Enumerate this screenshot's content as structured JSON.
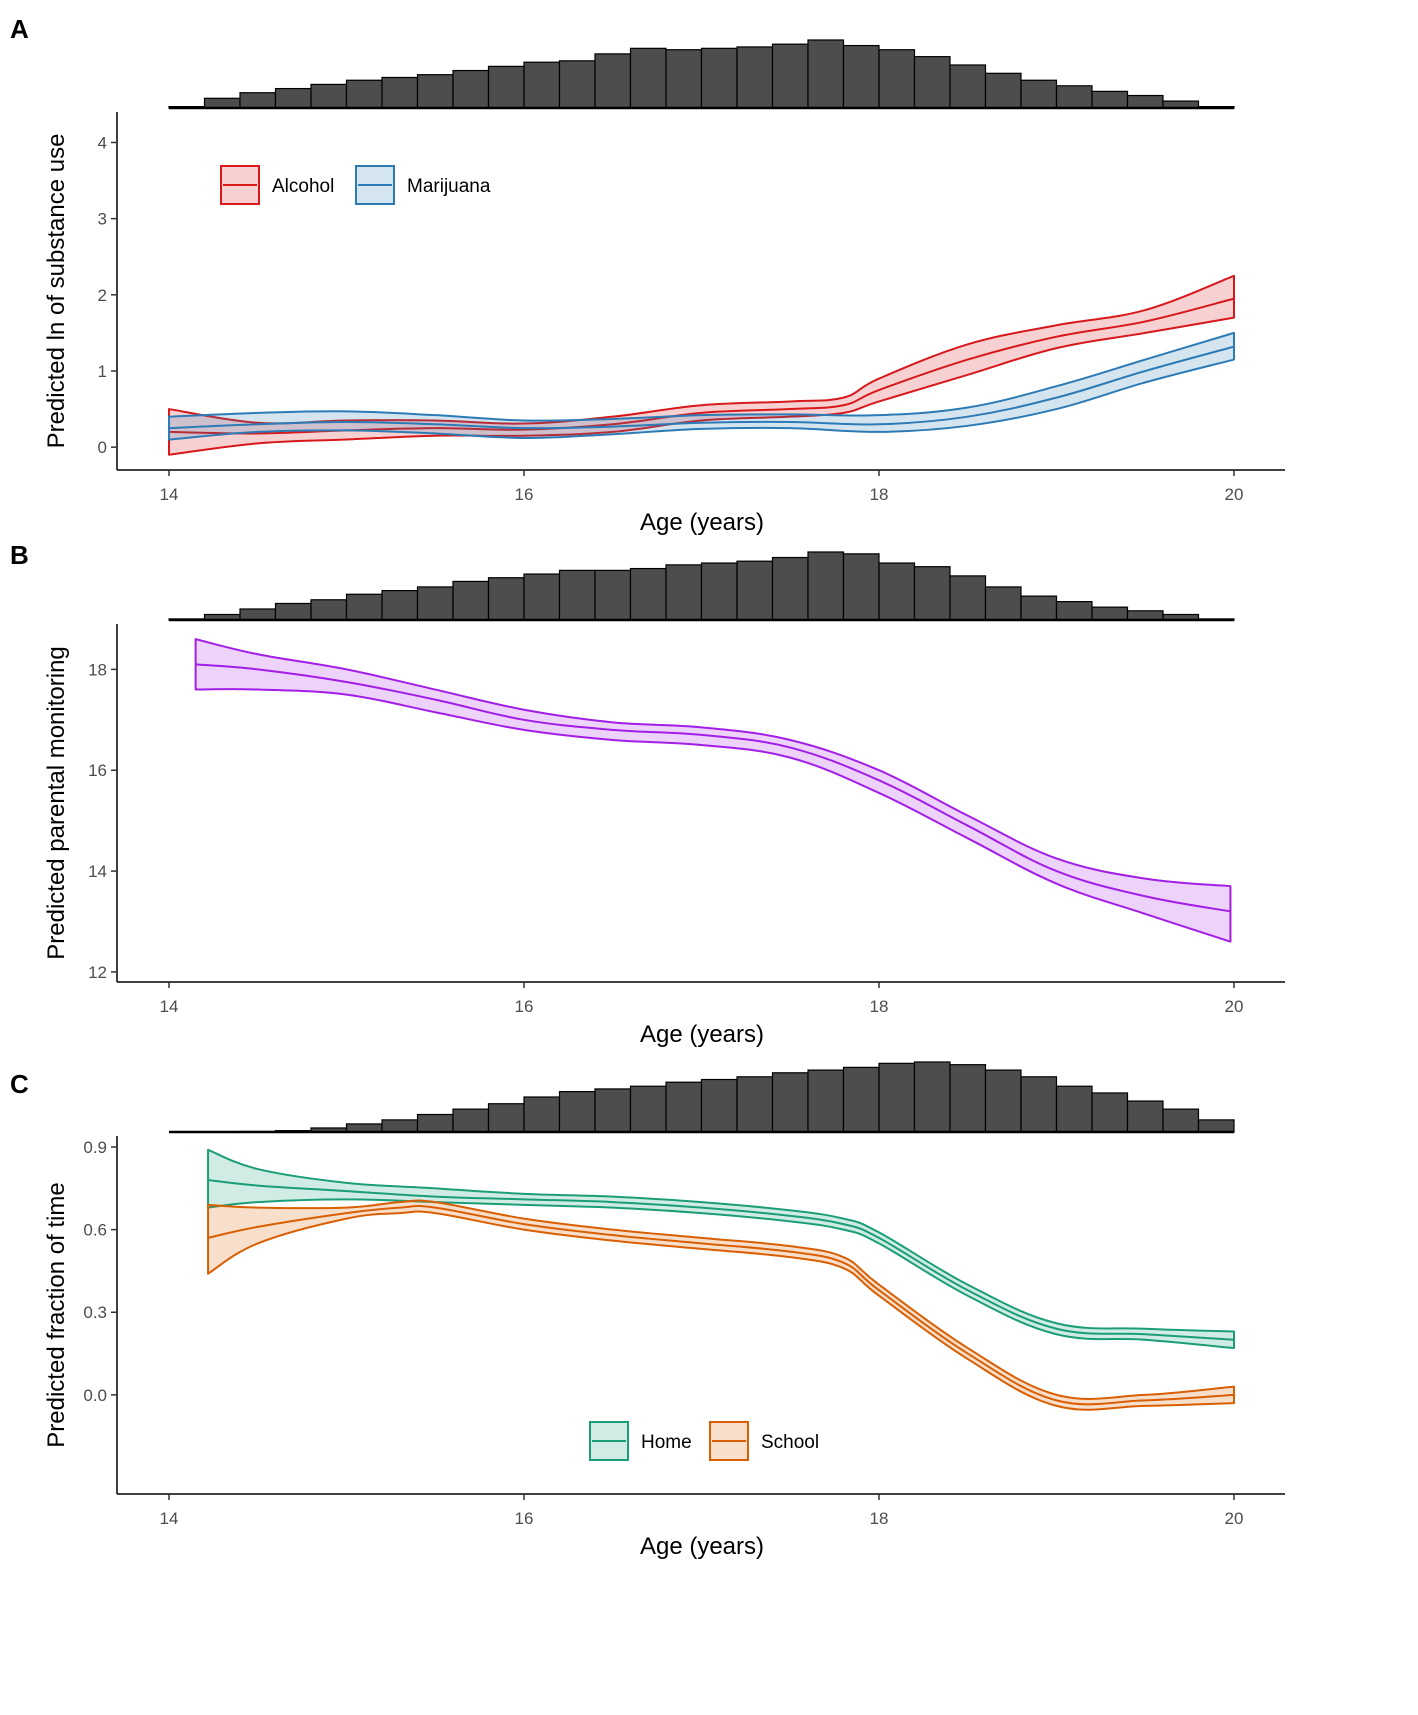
{
  "figure": "Three-panel figure of predicted outcomes by age with age-distribution histograms",
  "colors": {
    "alcohol": "#d7191c",
    "marijuana": "#2c7bb6",
    "monitoring": "#a31ee6",
    "home": "#1b9e77",
    "school": "#d95f02",
    "histogram_fill": "#4d4d4d"
  },
  "chart_data": [
    {
      "type": "line",
      "panel": "A",
      "xlabel": "Age (years)",
      "ylabel": "Predicted ln of substance use",
      "xlim": [
        14,
        20
      ],
      "ylim": [
        -0.3,
        4.4
      ],
      "xticks": [
        "14",
        "16",
        "18",
        "20"
      ],
      "yticks": [
        "0",
        "1",
        "2",
        "3",
        "4"
      ],
      "grid": false,
      "legend_position": "top-left",
      "histogram": {
        "bins": [
          14.0,
          14.2,
          14.4,
          14.6,
          14.8,
          15.0,
          15.2,
          15.4,
          15.6,
          15.8,
          16.0,
          16.2,
          16.4,
          16.6,
          16.8,
          17.0,
          17.2,
          17.4,
          17.6,
          17.8,
          18.0,
          18.2,
          18.4,
          18.6,
          18.8,
          19.0,
          19.2,
          19.4,
          19.6,
          19.8
        ],
        "counts": [
          0.5,
          3.5,
          5.5,
          7,
          8.5,
          10,
          11,
          12,
          13.5,
          15,
          16.5,
          17,
          19.5,
          21.5,
          21,
          21.5,
          22,
          23,
          24.5,
          22.5,
          21,
          18.5,
          15.5,
          12.5,
          10,
          8,
          6,
          4.5,
          2.5,
          0.5
        ]
      },
      "series": [
        {
          "name": "Alcohol",
          "x": [
            14.0,
            14.5,
            15.0,
            15.5,
            16.0,
            16.5,
            17.0,
            17.5,
            17.8,
            18.0,
            18.5,
            19.0,
            19.5,
            20.0
          ],
          "values": [
            0.2,
            0.18,
            0.22,
            0.25,
            0.23,
            0.3,
            0.45,
            0.5,
            0.55,
            0.75,
            1.15,
            1.45,
            1.65,
            1.95
          ],
          "lower": [
            -0.1,
            0.05,
            0.1,
            0.15,
            0.15,
            0.2,
            0.35,
            0.4,
            0.45,
            0.6,
            0.95,
            1.3,
            1.5,
            1.7
          ],
          "upper": [
            0.5,
            0.32,
            0.35,
            0.35,
            0.31,
            0.4,
            0.55,
            0.6,
            0.65,
            0.9,
            1.35,
            1.6,
            1.8,
            2.25
          ]
        },
        {
          "name": "Marijuana",
          "x": [
            14.0,
            14.5,
            15.0,
            15.5,
            16.0,
            16.5,
            17.0,
            17.5,
            18.0,
            18.5,
            19.0,
            19.5,
            20.0
          ],
          "values": [
            0.25,
            0.3,
            0.33,
            0.3,
            0.25,
            0.27,
            0.32,
            0.33,
            0.3,
            0.4,
            0.65,
            1.0,
            1.32
          ],
          "lower": [
            0.1,
            0.2,
            0.22,
            0.18,
            0.12,
            0.17,
            0.24,
            0.25,
            0.2,
            0.28,
            0.5,
            0.85,
            1.15
          ],
          "upper": [
            0.4,
            0.45,
            0.47,
            0.42,
            0.35,
            0.37,
            0.42,
            0.43,
            0.42,
            0.52,
            0.8,
            1.15,
            1.5
          ]
        }
      ]
    },
    {
      "type": "line",
      "panel": "B",
      "xlabel": "Age (years)",
      "ylabel": "Predicted parental monitoring",
      "xlim": [
        14,
        20
      ],
      "ylim": [
        11.8,
        18.9
      ],
      "xticks": [
        "14",
        "16",
        "18",
        "20"
      ],
      "yticks": [
        "12",
        "14",
        "16",
        "18"
      ],
      "grid": false,
      "legend_position": "none",
      "histogram": {
        "bins": [
          14.0,
          14.2,
          14.4,
          14.6,
          14.8,
          15.0,
          15.2,
          15.4,
          15.6,
          15.8,
          16.0,
          16.2,
          16.4,
          16.6,
          16.8,
          17.0,
          17.2,
          17.4,
          17.6,
          17.8,
          18.0,
          18.2,
          18.4,
          18.6,
          18.8,
          19.0,
          19.2,
          19.4,
          19.6,
          19.8
        ],
        "counts": [
          0.3,
          1.5,
          3,
          4.5,
          5.5,
          7,
          8,
          9,
          10.5,
          11.5,
          12.5,
          13.5,
          13.5,
          14,
          15,
          15.5,
          16,
          17,
          18.5,
          18,
          15.5,
          14.5,
          12,
          9,
          6.5,
          5,
          3.5,
          2.5,
          1.5,
          0.3
        ]
      },
      "series": [
        {
          "name": "Monitoring",
          "x": [
            14.15,
            14.5,
            15.0,
            15.5,
            16.0,
            16.5,
            17.0,
            17.5,
            18.0,
            18.5,
            19.0,
            19.5,
            19.98
          ],
          "values": [
            18.1,
            18.0,
            17.75,
            17.4,
            17.0,
            16.8,
            16.7,
            16.45,
            15.8,
            14.9,
            14.0,
            13.5,
            13.2
          ],
          "lower": [
            17.6,
            17.6,
            17.5,
            17.15,
            16.8,
            16.6,
            16.5,
            16.25,
            15.55,
            14.65,
            13.75,
            13.15,
            12.6
          ],
          "upper": [
            18.6,
            18.3,
            18.0,
            17.6,
            17.2,
            16.95,
            16.85,
            16.6,
            16.0,
            15.1,
            14.25,
            13.85,
            13.7
          ]
        }
      ]
    },
    {
      "type": "line",
      "panel": "C",
      "xlabel": "Age (years)",
      "ylabel": "Predicted fraction of time",
      "xlim": [
        14,
        20
      ],
      "ylim": [
        -0.36,
        0.94
      ],
      "xticks": [
        "14",
        "16",
        "18",
        "20"
      ],
      "yticks": [
        "0.0",
        "0.3",
        "0.6",
        "0.9"
      ],
      "grid": false,
      "legend_position": "bottom-center",
      "histogram": {
        "bins": [
          14.0,
          14.2,
          14.4,
          14.6,
          14.8,
          15.0,
          15.2,
          15.4,
          15.6,
          15.8,
          16.0,
          16.2,
          16.4,
          16.6,
          16.8,
          17.0,
          17.2,
          17.4,
          17.6,
          17.8,
          18.0,
          18.2,
          18.4,
          18.6,
          18.8,
          19.0,
          19.2,
          19.4,
          19.6,
          19.8
        ],
        "counts": [
          0,
          0,
          0.2,
          0.5,
          1.5,
          3,
          4.5,
          6.5,
          8.5,
          10.5,
          13,
          15,
          16,
          17,
          18.5,
          19.5,
          20.5,
          22,
          23,
          24,
          25.5,
          26,
          25,
          23,
          20.5,
          17,
          14.5,
          11.5,
          8.5,
          4.5
        ]
      },
      "series": [
        {
          "name": "Home",
          "x": [
            14.22,
            14.5,
            15.0,
            15.5,
            16.0,
            16.5,
            17.0,
            17.5,
            17.8,
            18.0,
            18.5,
            19.0,
            19.5,
            20.0
          ],
          "values": [
            0.78,
            0.76,
            0.74,
            0.72,
            0.71,
            0.7,
            0.68,
            0.65,
            0.62,
            0.57,
            0.38,
            0.24,
            0.22,
            0.2
          ],
          "lower": [
            0.68,
            0.7,
            0.71,
            0.7,
            0.69,
            0.68,
            0.66,
            0.63,
            0.6,
            0.55,
            0.36,
            0.22,
            0.2,
            0.17
          ],
          "upper": [
            0.89,
            0.82,
            0.77,
            0.75,
            0.73,
            0.72,
            0.7,
            0.67,
            0.64,
            0.59,
            0.4,
            0.26,
            0.24,
            0.23
          ]
        },
        {
          "name": "School",
          "x": [
            14.22,
            14.5,
            15.0,
            15.3,
            15.5,
            16.0,
            16.5,
            17.0,
            17.5,
            17.8,
            18.0,
            18.5,
            19.0,
            19.5,
            20.0
          ],
          "values": [
            0.57,
            0.61,
            0.66,
            0.68,
            0.68,
            0.62,
            0.58,
            0.55,
            0.52,
            0.48,
            0.38,
            0.15,
            -0.02,
            -0.02,
            0.0
          ],
          "lower": [
            0.44,
            0.55,
            0.64,
            0.66,
            0.66,
            0.6,
            0.56,
            0.53,
            0.5,
            0.46,
            0.36,
            0.13,
            -0.04,
            -0.04,
            -0.03
          ],
          "upper": [
            0.69,
            0.68,
            0.68,
            0.7,
            0.7,
            0.64,
            0.6,
            0.57,
            0.54,
            0.5,
            0.4,
            0.17,
            0.0,
            0.0,
            0.03
          ]
        }
      ]
    }
  ]
}
